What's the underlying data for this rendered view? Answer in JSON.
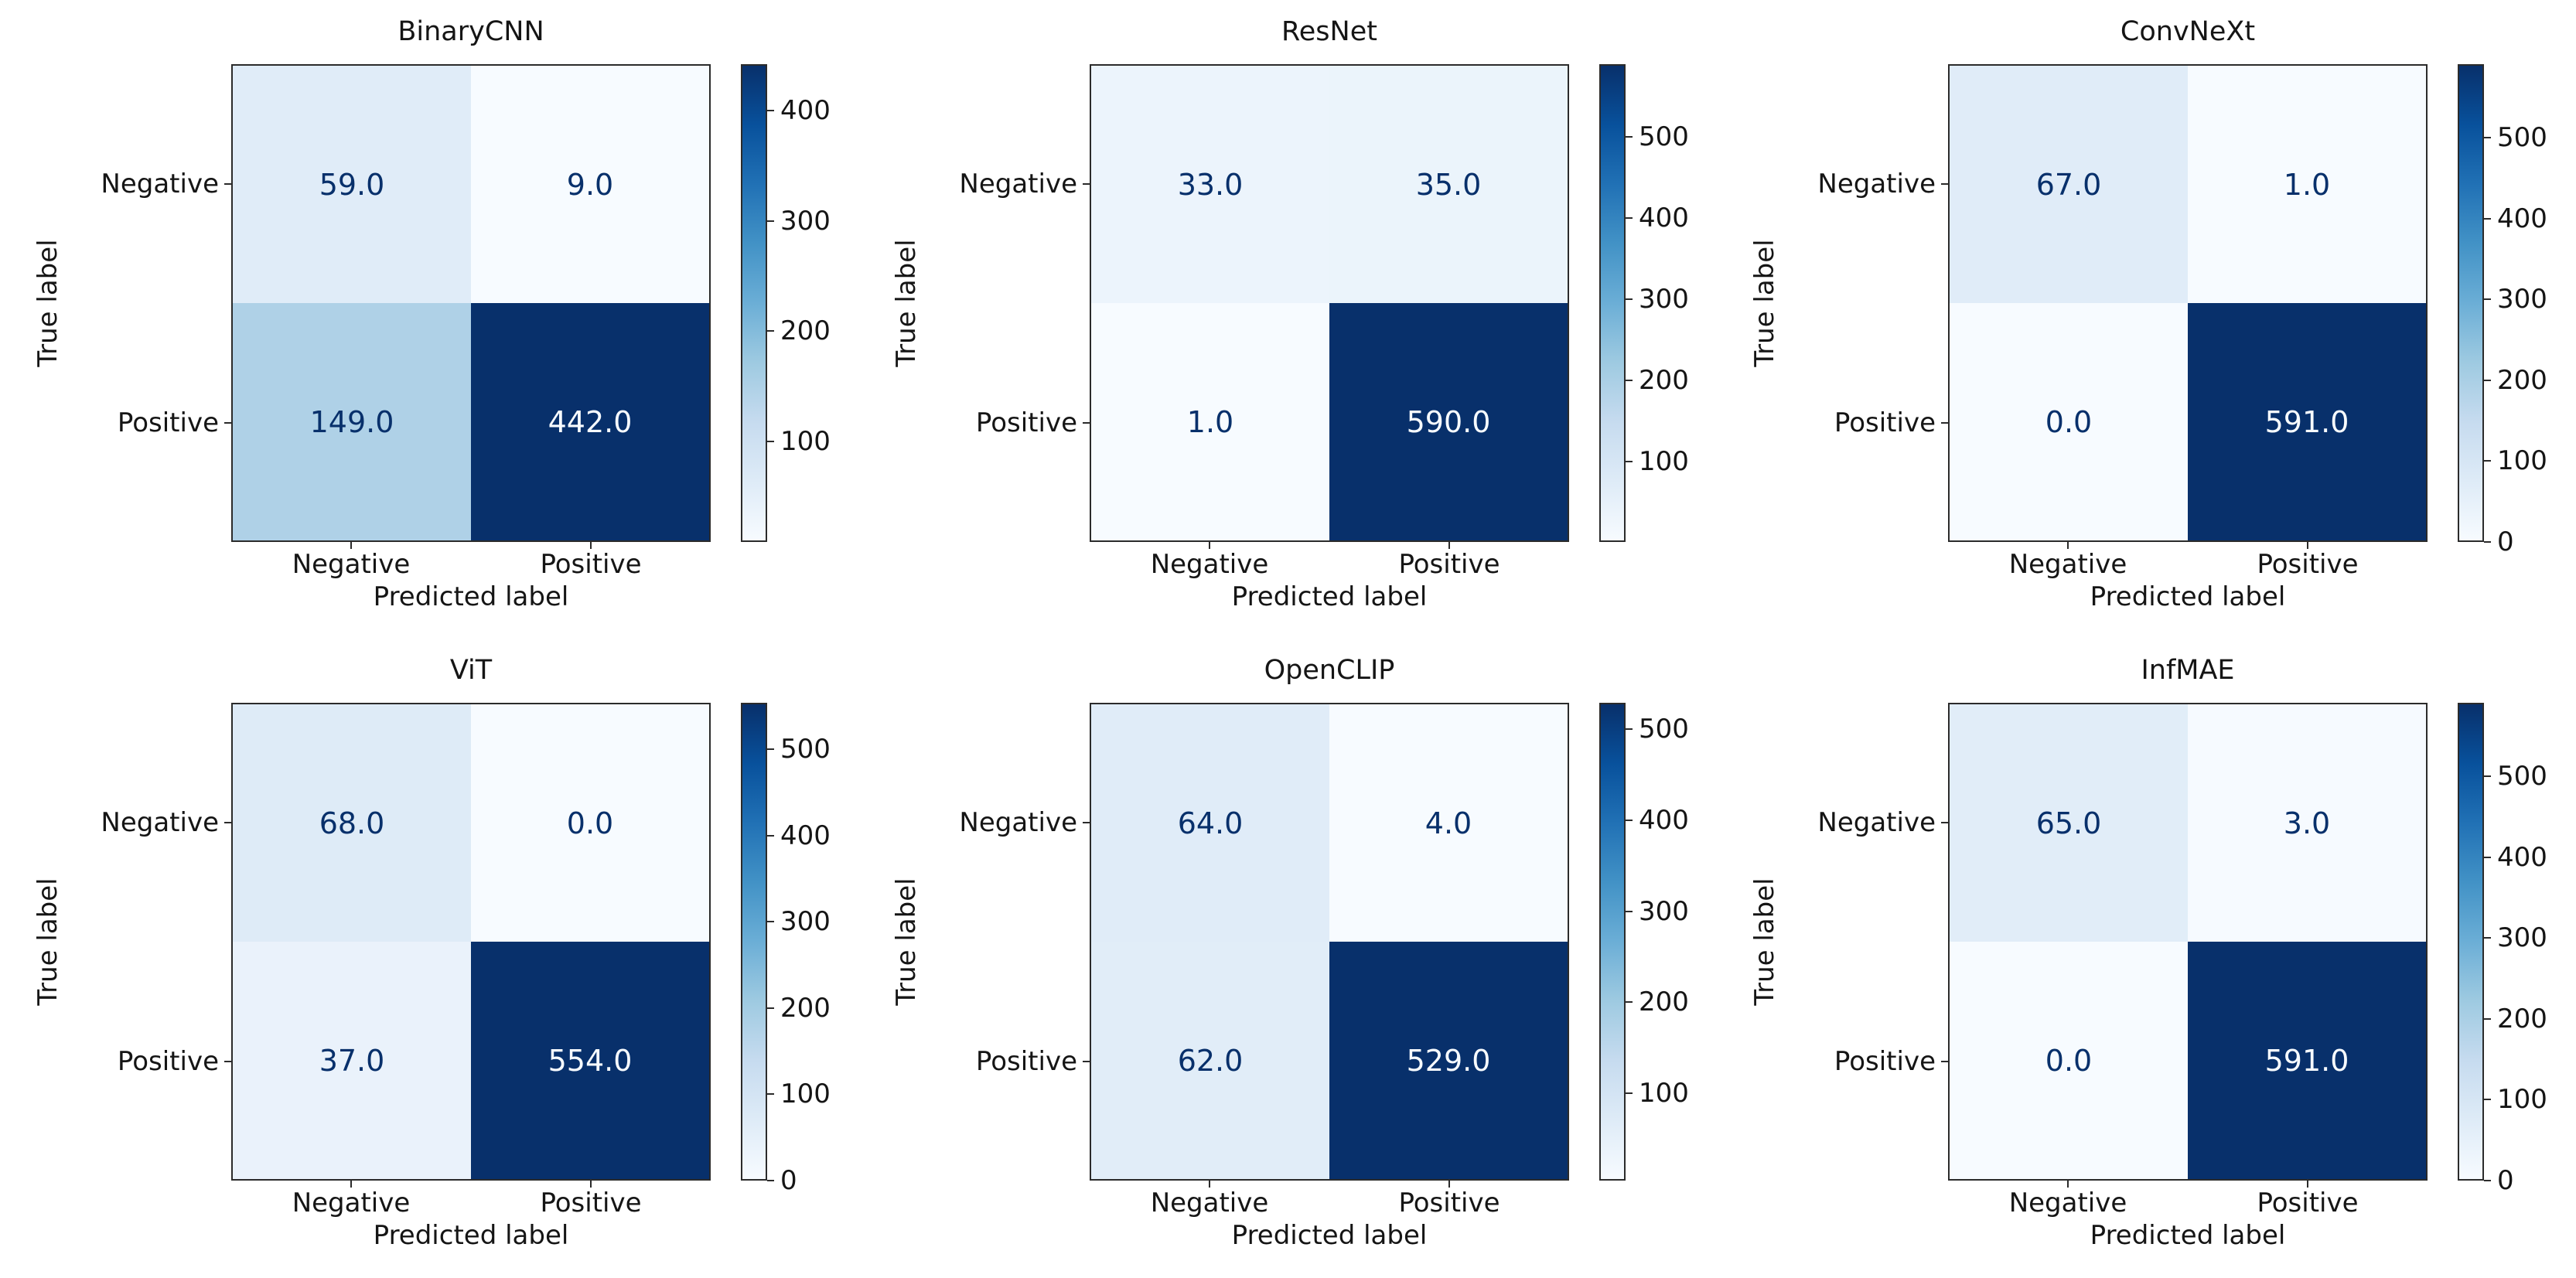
{
  "figure": {
    "background": "#ffffff",
    "grid": {
      "rows": 2,
      "cols": 3
    }
  },
  "labels": {
    "xlabel": "Predicted label",
    "ylabel": "True label",
    "classes": [
      "Negative",
      "Positive"
    ]
  },
  "colors": {
    "colormap": "Blues",
    "cmap_min": "#f7fbff",
    "cmap_max": "#08306b",
    "frame": "#2b2b2b",
    "text": "#151515"
  },
  "chart_data": [
    {
      "type": "heatmap",
      "title": "BinaryCNN",
      "xlabel": "Predicted label",
      "ylabel": "True label",
      "categories": [
        "Negative",
        "Positive"
      ],
      "values": [
        [
          59.0,
          9.0
        ],
        [
          149.0,
          442.0
        ]
      ],
      "colorbar_ticks": [
        100,
        200,
        300,
        400
      ],
      "vmin": 9,
      "vmax": 442
    },
    {
      "type": "heatmap",
      "title": "ResNet",
      "xlabel": "Predicted label",
      "ylabel": "True label",
      "categories": [
        "Negative",
        "Positive"
      ],
      "values": [
        [
          33.0,
          35.0
        ],
        [
          1.0,
          590.0
        ]
      ],
      "colorbar_ticks": [
        100,
        200,
        300,
        400,
        500
      ],
      "vmin": 1,
      "vmax": 590
    },
    {
      "type": "heatmap",
      "title": "ConvNeXt",
      "xlabel": "Predicted label",
      "ylabel": "True label",
      "categories": [
        "Negative",
        "Positive"
      ],
      "values": [
        [
          67.0,
          1.0
        ],
        [
          0.0,
          591.0
        ]
      ],
      "colorbar_ticks": [
        0,
        100,
        200,
        300,
        400,
        500
      ],
      "vmin": 0,
      "vmax": 591
    },
    {
      "type": "heatmap",
      "title": "ViT",
      "xlabel": "Predicted label",
      "ylabel": "True label",
      "categories": [
        "Negative",
        "Positive"
      ],
      "values": [
        [
          68.0,
          0.0
        ],
        [
          37.0,
          554.0
        ]
      ],
      "colorbar_ticks": [
        0,
        100,
        200,
        300,
        400,
        500
      ],
      "vmin": 0,
      "vmax": 554
    },
    {
      "type": "heatmap",
      "title": "OpenCLIP",
      "xlabel": "Predicted label",
      "ylabel": "True label",
      "categories": [
        "Negative",
        "Positive"
      ],
      "values": [
        [
          64.0,
          4.0
        ],
        [
          62.0,
          529.0
        ]
      ],
      "colorbar_ticks": [
        100,
        200,
        300,
        400,
        500
      ],
      "vmin": 4,
      "vmax": 529
    },
    {
      "type": "heatmap",
      "title": "InfMAE",
      "xlabel": "Predicted label",
      "ylabel": "True label",
      "categories": [
        "Negative",
        "Positive"
      ],
      "values": [
        [
          65.0,
          3.0
        ],
        [
          0.0,
          591.0
        ]
      ],
      "colorbar_ticks": [
        0,
        100,
        200,
        300,
        400,
        500
      ],
      "vmin": 0,
      "vmax": 591
    }
  ]
}
